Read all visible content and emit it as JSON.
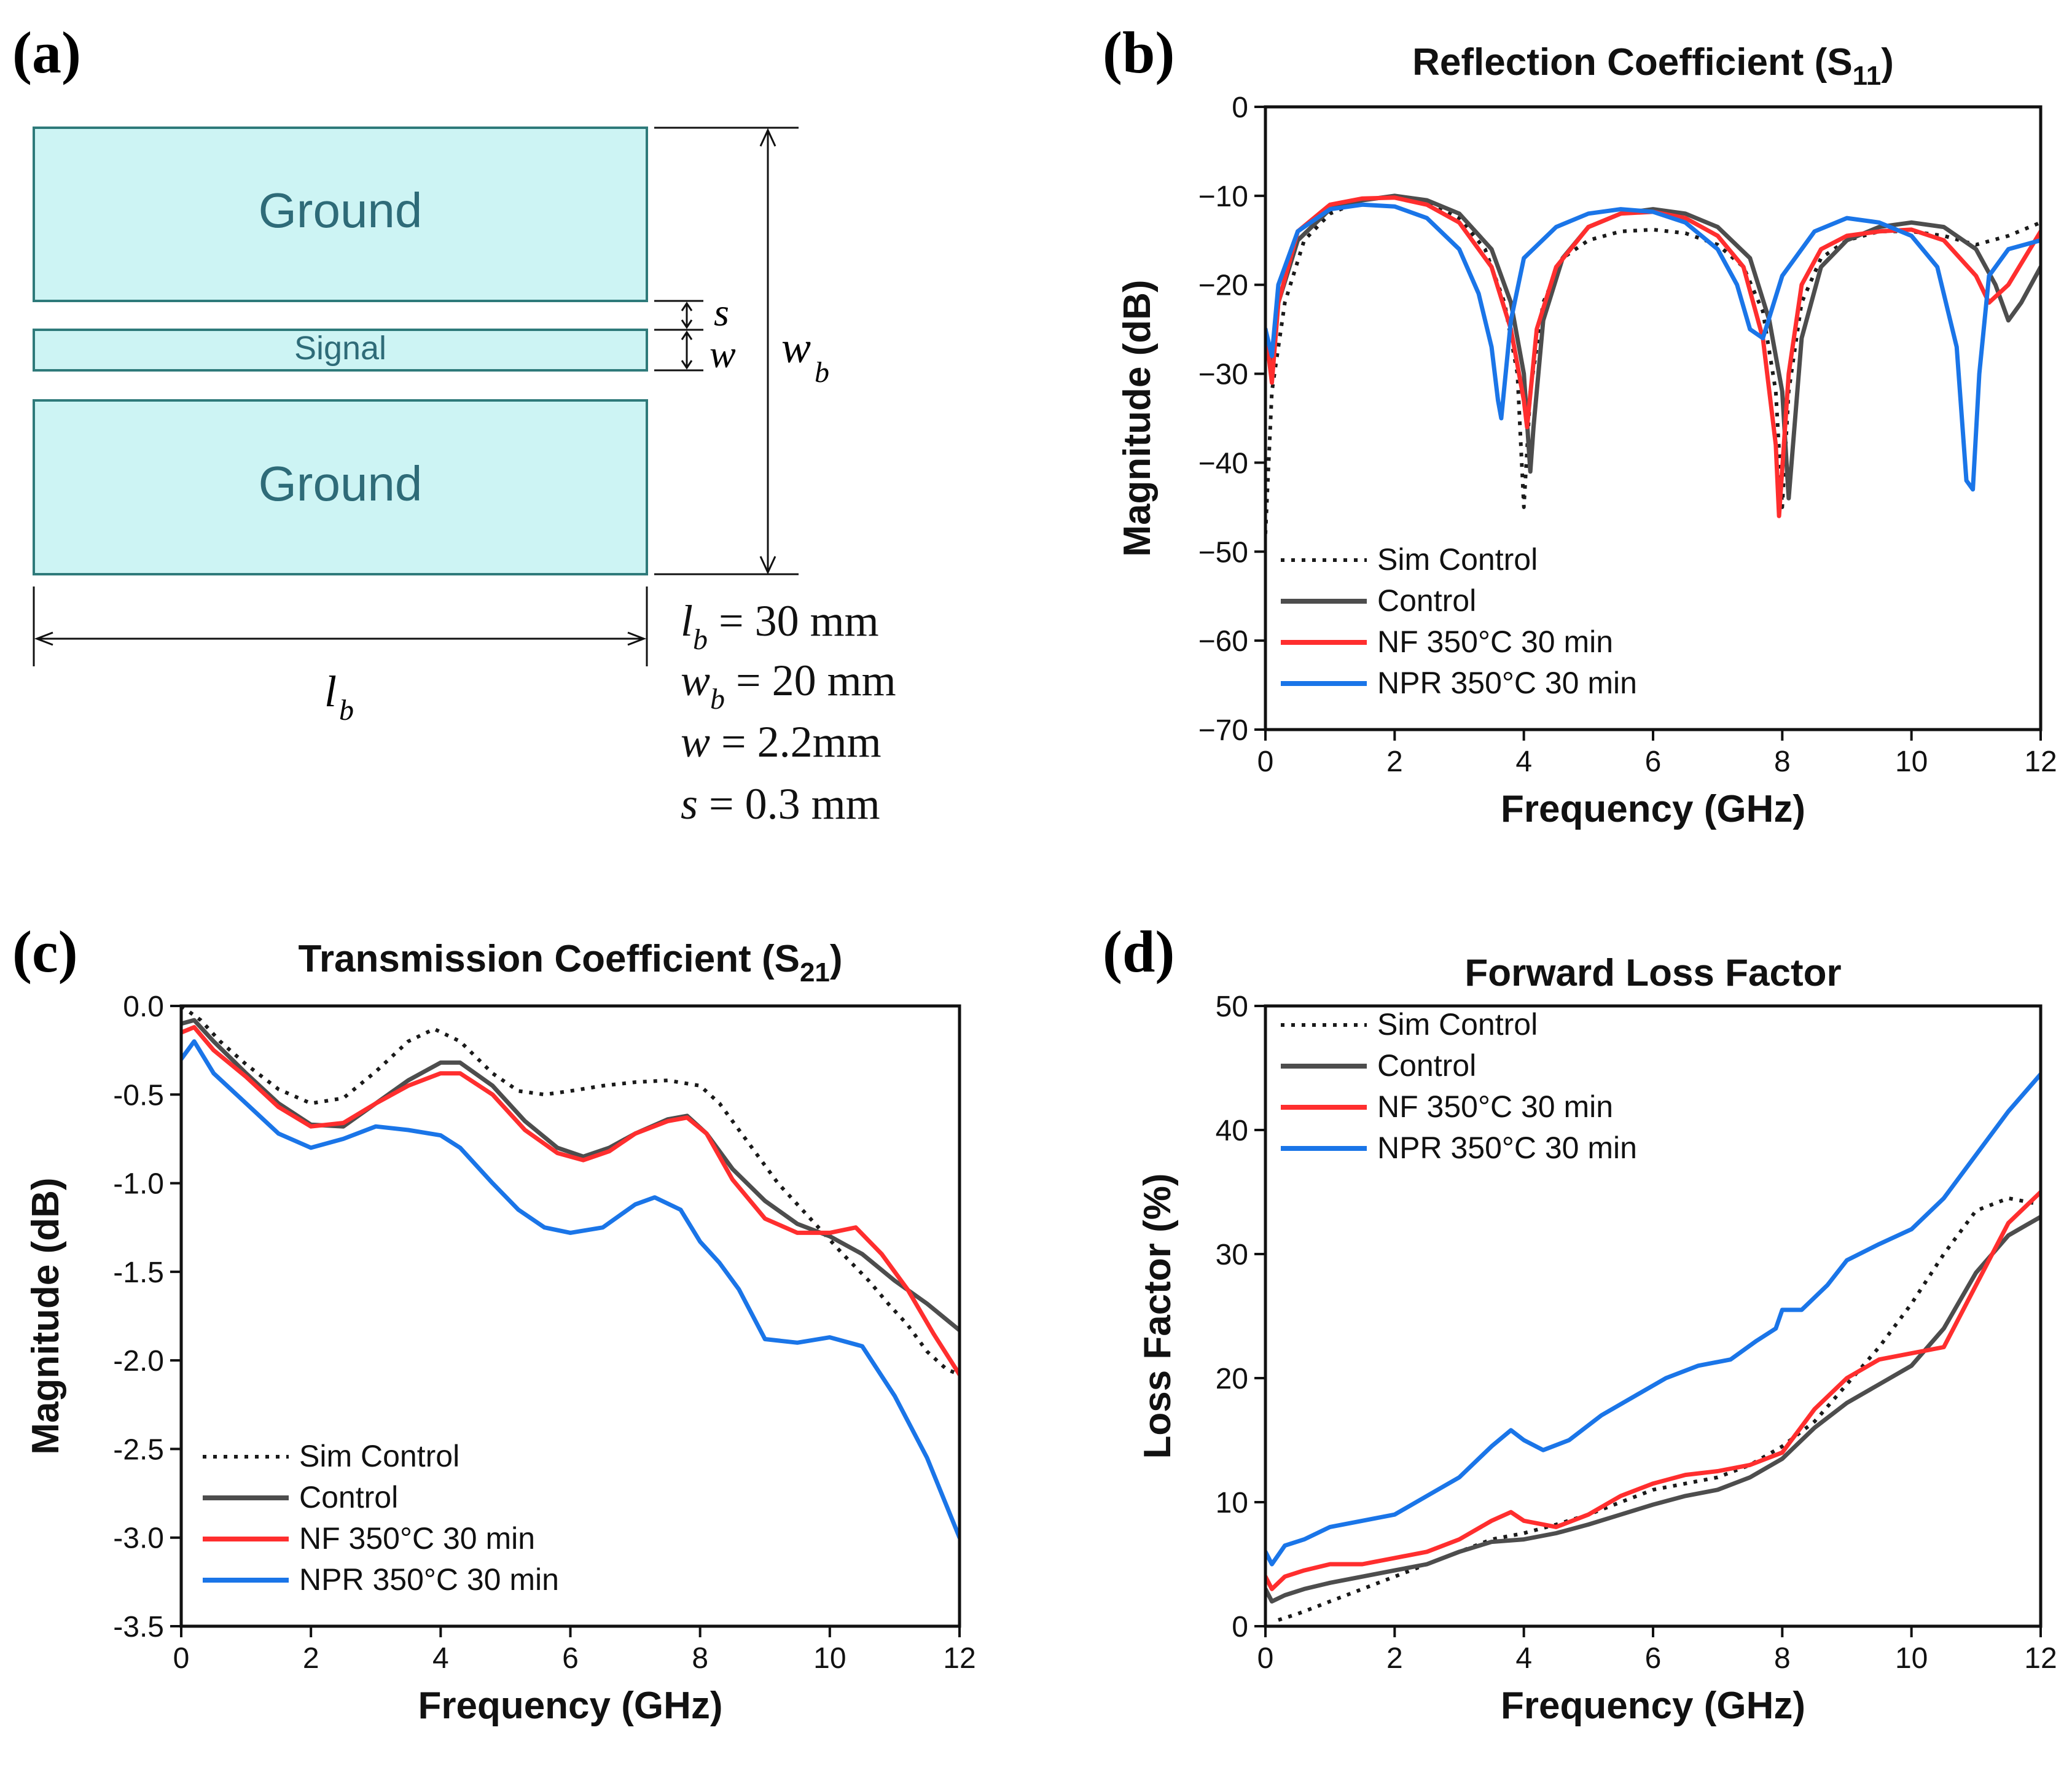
{
  "figure": {
    "panel_labels": [
      "(a)",
      "(b)",
      "(c)",
      "(d)"
    ]
  },
  "schematic": {
    "ground_label": "Ground",
    "signal_label": "Signal",
    "dims": {
      "s_symbol": "s",
      "w_symbol": "w",
      "wb_symbol": "w",
      "wb_sub": "b",
      "lb_symbol": "l",
      "lb_sub": "b"
    },
    "specs": [
      {
        "sym": "l",
        "sub": "b",
        "text": " = 30 mm"
      },
      {
        "sym": "w",
        "sub": "b",
        "text": " = 20 mm"
      },
      {
        "sym": "w",
        "sub": "",
        "text": " = 2.2mm"
      },
      {
        "sym": "s",
        "sub": "",
        "text": " = 0.3 mm"
      }
    ],
    "colors": {
      "fill": "#cdf4f4",
      "stroke": "#2e7a7a",
      "text": "#2e6b78"
    }
  },
  "series_styles": [
    {
      "name": "Sim Control",
      "color": "#1a1a1a",
      "dash": "dotted"
    },
    {
      "name": "Control",
      "color": "#4d4d4d",
      "dash": "solid"
    },
    {
      "name": "NF 350°C 30 min",
      "color": "#ff2e2e",
      "dash": "solid"
    },
    {
      "name": "NPR 350°C 30 min",
      "color": "#1a75e8",
      "dash": "solid"
    }
  ],
  "chart_data": [
    {
      "id": "b",
      "type": "line",
      "title": "Reflection Coefficient (S",
      "title_sub": "11",
      "title_end": ")",
      "xlabel": "Frequency (GHz)",
      "ylabel": "Magnitude (dB)",
      "xlim": [
        0,
        12
      ],
      "ylim": [
        -70,
        0
      ],
      "xticks": [
        0,
        2,
        4,
        6,
        8,
        10,
        12
      ],
      "yticks": [
        0,
        -10,
        -20,
        -30,
        -40,
        -50,
        -60,
        -70
      ],
      "ytick_labels": [
        "0",
        "−10",
        "−20",
        "−30",
        "−40",
        "−50",
        "−60",
        "−70"
      ],
      "legend_position": "bottom-left",
      "series": [
        {
          "name": "Sim Control",
          "x": [
            0,
            0.1,
            0.3,
            0.6,
            1.0,
            1.5,
            2.0,
            2.5,
            3.0,
            3.4,
            3.7,
            3.9,
            4.0,
            4.1,
            4.3,
            4.6,
            5.0,
            5.5,
            6.0,
            6.5,
            7.0,
            7.4,
            7.7,
            7.9,
            8.0,
            8.1,
            8.3,
            8.6,
            9.0,
            9.5,
            10.0,
            10.5,
            11.0,
            11.5,
            12.0
          ],
          "values": [
            -48,
            -32,
            -22,
            -15,
            -12,
            -10.5,
            -10,
            -10.5,
            -12.5,
            -16,
            -22,
            -30,
            -45,
            -32,
            -22,
            -17,
            -15,
            -14,
            -13.8,
            -14.2,
            -15.5,
            -18,
            -23,
            -32,
            -45,
            -32,
            -22,
            -17,
            -15,
            -14,
            -14,
            -14.5,
            -15.5,
            -14.5,
            -13
          ]
        },
        {
          "name": "Control",
          "x": [
            0,
            0.1,
            0.2,
            0.5,
            1.0,
            1.5,
            2.0,
            2.5,
            3.0,
            3.5,
            3.8,
            4.0,
            4.1,
            4.15,
            4.3,
            4.6,
            5.0,
            5.5,
            6.0,
            6.5,
            7.0,
            7.5,
            7.8,
            8.0,
            8.1,
            8.3,
            8.6,
            9.0,
            9.5,
            10.0,
            10.5,
            11.0,
            11.3,
            11.5,
            11.7,
            12.0
          ],
          "values": [
            -25,
            -30,
            -22,
            -15,
            -11.5,
            -10.5,
            -10,
            -10.5,
            -12,
            -16,
            -22,
            -30,
            -41,
            -36,
            -24,
            -17,
            -13.5,
            -12,
            -11.5,
            -12,
            -13.5,
            -17,
            -24,
            -32,
            -44,
            -26,
            -18,
            -15,
            -13.5,
            -13,
            -13.5,
            -16,
            -20,
            -24,
            -22,
            -18
          ]
        },
        {
          "name": "NF 350°C 30 min",
          "x": [
            0,
            0.1,
            0.2,
            0.5,
            1.0,
            1.5,
            2.0,
            2.5,
            3.0,
            3.5,
            3.8,
            4.0,
            4.05,
            4.2,
            4.5,
            5.0,
            5.5,
            6.0,
            6.5,
            7.0,
            7.4,
            7.7,
            7.9,
            7.95,
            8.1,
            8.3,
            8.6,
            9.0,
            9.5,
            10.0,
            10.5,
            11.0,
            11.2,
            11.5,
            12.0
          ],
          "values": [
            -25,
            -31,
            -22,
            -14,
            -11,
            -10.3,
            -10.2,
            -11,
            -13,
            -18,
            -25,
            -33,
            -36,
            -25,
            -18,
            -13.5,
            -12,
            -11.8,
            -12.5,
            -14.5,
            -18,
            -26,
            -38,
            -46,
            -30,
            -20,
            -16,
            -14.5,
            -14,
            -13.8,
            -15,
            -19,
            -22,
            -20,
            -14
          ]
        },
        {
          "name": "NPR 350°C 30 min",
          "x": [
            0,
            0.1,
            0.2,
            0.5,
            1.0,
            1.5,
            2.0,
            2.5,
            3.0,
            3.3,
            3.5,
            3.6,
            3.65,
            3.8,
            4.0,
            4.5,
            5.0,
            5.5,
            6.0,
            6.5,
            7.0,
            7.3,
            7.5,
            7.7,
            8.0,
            8.5,
            9.0,
            9.5,
            10.0,
            10.4,
            10.7,
            10.85,
            10.95,
            11.05,
            11.2,
            11.5,
            12.0
          ],
          "values": [
            -25,
            -28,
            -20,
            -14,
            -11.5,
            -11,
            -11.2,
            -12.5,
            -16,
            -21,
            -27,
            -33,
            -35,
            -24,
            -17,
            -13.5,
            -12,
            -11.5,
            -11.8,
            -13,
            -16,
            -20,
            -25,
            -26,
            -19,
            -14,
            -12.5,
            -13,
            -14.5,
            -18,
            -27,
            -42,
            -43,
            -30,
            -19,
            -16,
            -15
          ]
        }
      ]
    },
    {
      "id": "c",
      "type": "line",
      "title": "Transmission Coefficient (S",
      "title_sub": "21",
      "title_end": ")",
      "xlabel": "Frequency (GHz)",
      "ylabel": "Magnitude (dB)",
      "xlim": [
        0,
        12
      ],
      "ylim": [
        -3.5,
        0
      ],
      "xticks": [
        0,
        2,
        4,
        6,
        8,
        10,
        12
      ],
      "yticks": [
        0,
        -0.5,
        -1,
        -1.5,
        -2,
        -2.5,
        -3,
        -3.5
      ],
      "ytick_labels": [
        "0.0",
        "-0.5",
        "-1.0",
        "-1.5",
        "-2.0",
        "-2.5",
        "-3.0",
        "-3.5"
      ],
      "legend_position": "bottom-left",
      "series": [
        {
          "name": "Sim Control",
          "x": [
            0,
            0.3,
            0.6,
            1.0,
            1.5,
            2.0,
            2.5,
            3.0,
            3.5,
            3.9,
            4.3,
            4.8,
            5.2,
            5.6,
            6.0,
            6.5,
            7.0,
            7.5,
            8.0,
            8.3,
            8.7,
            9.2,
            9.7,
            10.2,
            10.6,
            10.9,
            11.2,
            11.5,
            11.8,
            12.0
          ],
          "values": [
            0,
            -0.08,
            -0.2,
            -0.33,
            -0.47,
            -0.55,
            -0.52,
            -0.37,
            -0.2,
            -0.13,
            -0.2,
            -0.38,
            -0.48,
            -0.5,
            -0.48,
            -0.45,
            -0.43,
            -0.42,
            -0.45,
            -0.55,
            -0.75,
            -1.0,
            -1.2,
            -1.4,
            -1.55,
            -1.68,
            -1.8,
            -1.95,
            -2.05,
            -2.08
          ]
        },
        {
          "name": "Control",
          "x": [
            0,
            0.2,
            0.5,
            1.0,
            1.5,
            2.0,
            2.5,
            3.0,
            3.5,
            4.0,
            4.3,
            4.8,
            5.3,
            5.8,
            6.2,
            6.6,
            7.0,
            7.5,
            7.8,
            8.1,
            8.5,
            9.0,
            9.5,
            10.0,
            10.5,
            11.0,
            11.5,
            12.0
          ],
          "values": [
            -0.1,
            -0.08,
            -0.2,
            -0.38,
            -0.55,
            -0.67,
            -0.68,
            -0.55,
            -0.42,
            -0.32,
            -0.32,
            -0.45,
            -0.65,
            -0.8,
            -0.85,
            -0.8,
            -0.72,
            -0.64,
            -0.62,
            -0.72,
            -0.92,
            -1.1,
            -1.23,
            -1.3,
            -1.4,
            -1.55,
            -1.68,
            -1.83
          ]
        },
        {
          "name": "NF 350°C 30 min",
          "x": [
            0,
            0.2,
            0.5,
            1.0,
            1.5,
            2.0,
            2.5,
            3.0,
            3.5,
            4.0,
            4.3,
            4.8,
            5.3,
            5.8,
            6.2,
            6.6,
            7.0,
            7.5,
            7.8,
            8.1,
            8.5,
            9.0,
            9.5,
            10.0,
            10.4,
            10.8,
            11.2,
            11.6,
            12.0
          ],
          "values": [
            -0.15,
            -0.12,
            -0.25,
            -0.4,
            -0.57,
            -0.68,
            -0.66,
            -0.55,
            -0.45,
            -0.38,
            -0.38,
            -0.5,
            -0.7,
            -0.83,
            -0.87,
            -0.82,
            -0.72,
            -0.65,
            -0.63,
            -0.72,
            -0.98,
            -1.2,
            -1.28,
            -1.28,
            -1.25,
            -1.4,
            -1.6,
            -1.85,
            -2.08
          ]
        },
        {
          "name": "NPR 350°C 30 min",
          "x": [
            0,
            0.2,
            0.5,
            1.0,
            1.5,
            2.0,
            2.5,
            3.0,
            3.5,
            4.0,
            4.3,
            4.8,
            5.2,
            5.6,
            6.0,
            6.5,
            7.0,
            7.3,
            7.7,
            8.0,
            8.3,
            8.6,
            9.0,
            9.5,
            10.0,
            10.5,
            11.0,
            11.5,
            12.0
          ],
          "values": [
            -0.3,
            -0.2,
            -0.38,
            -0.55,
            -0.72,
            -0.8,
            -0.75,
            -0.68,
            -0.7,
            -0.73,
            -0.8,
            -1.0,
            -1.15,
            -1.25,
            -1.28,
            -1.25,
            -1.12,
            -1.08,
            -1.15,
            -1.33,
            -1.45,
            -1.6,
            -1.88,
            -1.9,
            -1.87,
            -1.92,
            -2.2,
            -2.55,
            -3.0
          ]
        }
      ]
    },
    {
      "id": "d",
      "type": "line",
      "title": "Forward Loss Factor",
      "title_sub": "",
      "title_end": "",
      "xlabel": "Frequency (GHz)",
      "ylabel": "Loss Factor (%)",
      "xlim": [
        0,
        12
      ],
      "ylim": [
        0,
        50
      ],
      "xticks": [
        0,
        2,
        4,
        6,
        8,
        10,
        12
      ],
      "yticks": [
        0,
        10,
        20,
        30,
        40,
        50
      ],
      "ytick_labels": [
        "0",
        "10",
        "20",
        "30",
        "40",
        "50"
      ],
      "legend_position": "top-left",
      "series": [
        {
          "name": "Sim Control",
          "x": [
            0.2,
            0.5,
            1.0,
            1.5,
            2.0,
            2.5,
            3.0,
            3.5,
            4.0,
            4.5,
            5.0,
            5.5,
            6.0,
            6.5,
            7.0,
            7.5,
            8.0,
            8.5,
            9.0,
            9.5,
            10.0,
            10.5,
            11.0,
            11.5,
            12.0
          ],
          "values": [
            0.5,
            1.0,
            2.0,
            3.0,
            4.0,
            5.0,
            6.0,
            7.0,
            7.5,
            8.2,
            9.0,
            10.0,
            11.0,
            11.5,
            12.0,
            13.0,
            14.5,
            16.5,
            19.5,
            22.5,
            26.0,
            30.0,
            33.5,
            34.5,
            34.0
          ]
        },
        {
          "name": "Control",
          "x": [
            0,
            0.1,
            0.3,
            0.6,
            1.0,
            1.5,
            2.0,
            2.5,
            3.0,
            3.5,
            4.0,
            4.5,
            5.0,
            5.5,
            6.0,
            6.5,
            7.0,
            7.5,
            8.0,
            8.5,
            9.0,
            9.5,
            10.0,
            10.5,
            11.0,
            11.5,
            12.0
          ],
          "values": [
            3.0,
            2.0,
            2.5,
            3.0,
            3.5,
            4.0,
            4.5,
            5.0,
            6.0,
            6.8,
            7.0,
            7.5,
            8.2,
            9.0,
            9.8,
            10.5,
            11.0,
            12.0,
            13.5,
            16.0,
            18.0,
            19.5,
            21.0,
            24.0,
            28.5,
            31.5,
            33.0
          ]
        },
        {
          "name": "NF 350°C 30 min",
          "x": [
            0,
            0.1,
            0.3,
            0.6,
            1.0,
            1.5,
            2.0,
            2.5,
            3.0,
            3.5,
            3.8,
            4.0,
            4.5,
            5.0,
            5.5,
            6.0,
            6.5,
            7.0,
            7.5,
            8.0,
            8.5,
            9.0,
            9.5,
            10.0,
            10.5,
            11.0,
            11.5,
            12.0
          ],
          "values": [
            4.0,
            3.0,
            4.0,
            4.5,
            5.0,
            5.0,
            5.5,
            6.0,
            7.0,
            8.5,
            9.2,
            8.5,
            8.0,
            9.0,
            10.5,
            11.5,
            12.2,
            12.5,
            13.0,
            14.0,
            17.5,
            20.0,
            21.5,
            22.0,
            22.5,
            27.5,
            32.5,
            35.0
          ]
        },
        {
          "name": "NPR 350°C 30 min",
          "x": [
            0,
            0.1,
            0.3,
            0.6,
            1.0,
            1.5,
            2.0,
            2.5,
            3.0,
            3.5,
            3.8,
            4.0,
            4.3,
            4.7,
            5.2,
            5.7,
            6.2,
            6.7,
            7.2,
            7.6,
            7.9,
            8.0,
            8.3,
            8.7,
            9.0,
            9.5,
            10.0,
            10.5,
            11.0,
            11.5,
            12.0
          ],
          "values": [
            6.0,
            5.0,
            6.5,
            7.0,
            8.0,
            8.5,
            9.0,
            10.5,
            12.0,
            14.5,
            15.8,
            15.0,
            14.2,
            15.0,
            17.0,
            18.5,
            20.0,
            21.0,
            21.5,
            23.0,
            24.0,
            25.5,
            25.5,
            27.5,
            29.5,
            30.8,
            32.0,
            34.5,
            38.0,
            41.5,
            44.5
          ]
        }
      ]
    }
  ]
}
